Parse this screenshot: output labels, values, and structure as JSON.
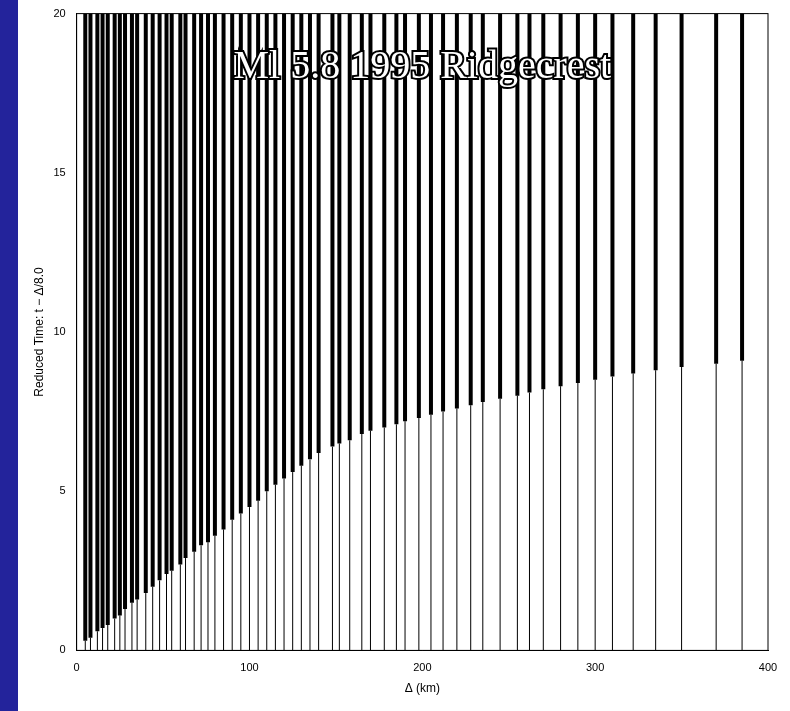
{
  "chart_data": {
    "type": "line",
    "title": "Ml 5.8 1995 Ridgecrest",
    "x_label": "Δ (km)",
    "y_label": "Reduced Time: t − Δ/8.0",
    "x": [
      5,
      8,
      12,
      15,
      18,
      22,
      25,
      28,
      32,
      35,
      40,
      44,
      48,
      52,
      55,
      60,
      63,
      68,
      72,
      76,
      80,
      85,
      90,
      95,
      100,
      105,
      110,
      115,
      120,
      125,
      130,
      135,
      140,
      148,
      152,
      158,
      165,
      170,
      178,
      185,
      190,
      198,
      205,
      212,
      220,
      228,
      235,
      245,
      255,
      262,
      270,
      280,
      290,
      300,
      310,
      322,
      335,
      350,
      370,
      385
    ],
    "values": [
      0.3,
      0.4,
      0.6,
      0.7,
      0.8,
      1.0,
      1.1,
      1.3,
      1.5,
      1.6,
      1.8,
      2.0,
      2.2,
      2.4,
      2.5,
      2.7,
      2.9,
      3.1,
      3.3,
      3.4,
      3.6,
      3.8,
      4.1,
      4.3,
      4.5,
      4.7,
      5.0,
      5.2,
      5.4,
      5.6,
      5.8,
      6.0,
      6.2,
      6.4,
      6.5,
      6.6,
      6.8,
      6.9,
      7.0,
      7.1,
      7.2,
      7.3,
      7.4,
      7.5,
      7.6,
      7.7,
      7.8,
      7.9,
      8.0,
      8.1,
      8.2,
      8.3,
      8.4,
      8.5,
      8.6,
      8.7,
      8.8,
      8.9,
      9.0,
      9.1
    ],
    "color": "#000000",
    "xlim": [
      0,
      400
    ],
    "xticks": [
      0,
      100,
      200,
      300,
      400
    ],
    "ylim": [
      0,
      20
    ],
    "yticks": [
      0,
      5,
      10,
      15,
      20
    ],
    "grid": false
  }
}
